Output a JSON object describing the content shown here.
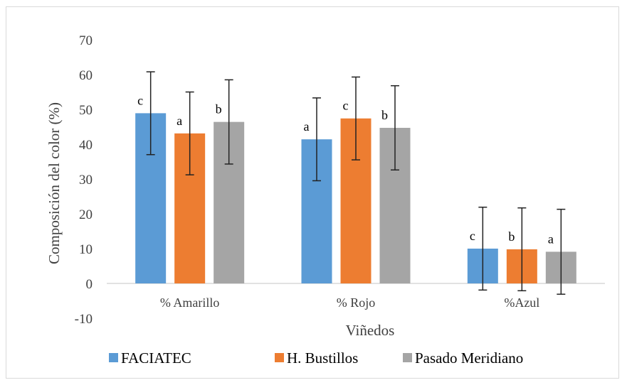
{
  "chart_data": {
    "type": "bar",
    "title": "",
    "xlabel": "Viñedos",
    "ylabel": "Composición del color (%)",
    "ylim": [
      -10,
      70
    ],
    "yticks": [
      -10,
      0,
      10,
      20,
      30,
      40,
      50,
      60,
      70
    ],
    "categories": [
      "% Amarillo",
      "% Rojo",
      "%Azul"
    ],
    "series": [
      {
        "name": "FACIATEC",
        "color": "#5b9bd5",
        "values": [
          48.9,
          41.4,
          10.0
        ],
        "error": [
          11.9,
          11.9,
          11.9
        ],
        "labels": [
          "c",
          "a",
          "c"
        ]
      },
      {
        "name": "H. Bustillos",
        "color": "#ed7d31",
        "values": [
          43.1,
          47.4,
          9.8
        ],
        "error": [
          11.9,
          11.9,
          11.9
        ],
        "labels": [
          "a",
          "c",
          "b"
        ]
      },
      {
        "name": "Pasado Meridiano",
        "color": "#a5a5a5",
        "values": [
          46.4,
          44.7,
          9.1
        ],
        "error": [
          12.1,
          12.1,
          12.2
        ],
        "labels": [
          "b",
          "b",
          "a"
        ]
      }
    ],
    "legend_position": "bottom",
    "grid": false
  }
}
